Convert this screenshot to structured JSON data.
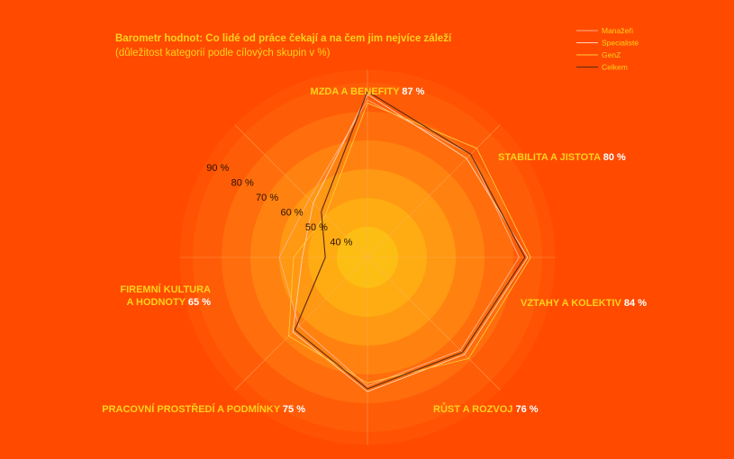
{
  "chart_data": {
    "type": "radar",
    "title": "Barometr hodnot: Co lidé od práce čekají a na čem jim nejvíce záleží",
    "subtitle": "(důležitost kategorií podle cílových skupin v %)",
    "rlim": [
      40,
      90
    ],
    "rticks": [
      {
        "value": 40,
        "label": "40 %"
      },
      {
        "value": 50,
        "label": "50 %"
      },
      {
        "value": 60,
        "label": "60 %"
      },
      {
        "value": 70,
        "label": "70 %"
      },
      {
        "value": 80,
        "label": "80 %"
      },
      {
        "value": 90,
        "label": "90 %"
      }
    ],
    "categories": [
      {
        "label": "MZDA A BENEFITY",
        "value": "87 %"
      },
      {
        "label": "STABILITA A JISTOTA",
        "value": "80 %"
      },
      {
        "label": "VZTAHY A KOLEKTIV",
        "value": "84 %"
      },
      {
        "label": "RŮST A ROZVOJ",
        "value": "76 %"
      },
      {
        "label": "PRACOVNÍ PROSTŘEDÍ A PODMÍNKY",
        "value": "75 %"
      },
      {
        "label_lines": [
          "FIREMNÍ KULTURA",
          "A HODNOTY"
        ],
        "value": "65 %"
      },
      {
        "label": "",
        "value": ""
      },
      {
        "label": "",
        "value": ""
      }
    ],
    "series": [
      {
        "name": "Manažeři",
        "color": "#FFB08A",
        "values": [
          84,
          80,
          82,
          75,
          74,
          63,
          60,
          58
        ]
      },
      {
        "name": "Specialisté",
        "color": "#FFD2B5",
        "values": [
          86,
          78,
          85,
          77,
          76,
          66,
          52,
          56
        ]
      },
      {
        "name": "GenZ",
        "color": "#FFC83A",
        "values": [
          83,
          83,
          86,
          79,
          73,
          68,
          55,
          50
        ]
      },
      {
        "name": "Celkem",
        "color": "#5A2A12",
        "values": [
          87,
          80,
          84,
          76,
          75,
          65,
          44,
          52
        ]
      }
    ],
    "legend": "top-right"
  }
}
